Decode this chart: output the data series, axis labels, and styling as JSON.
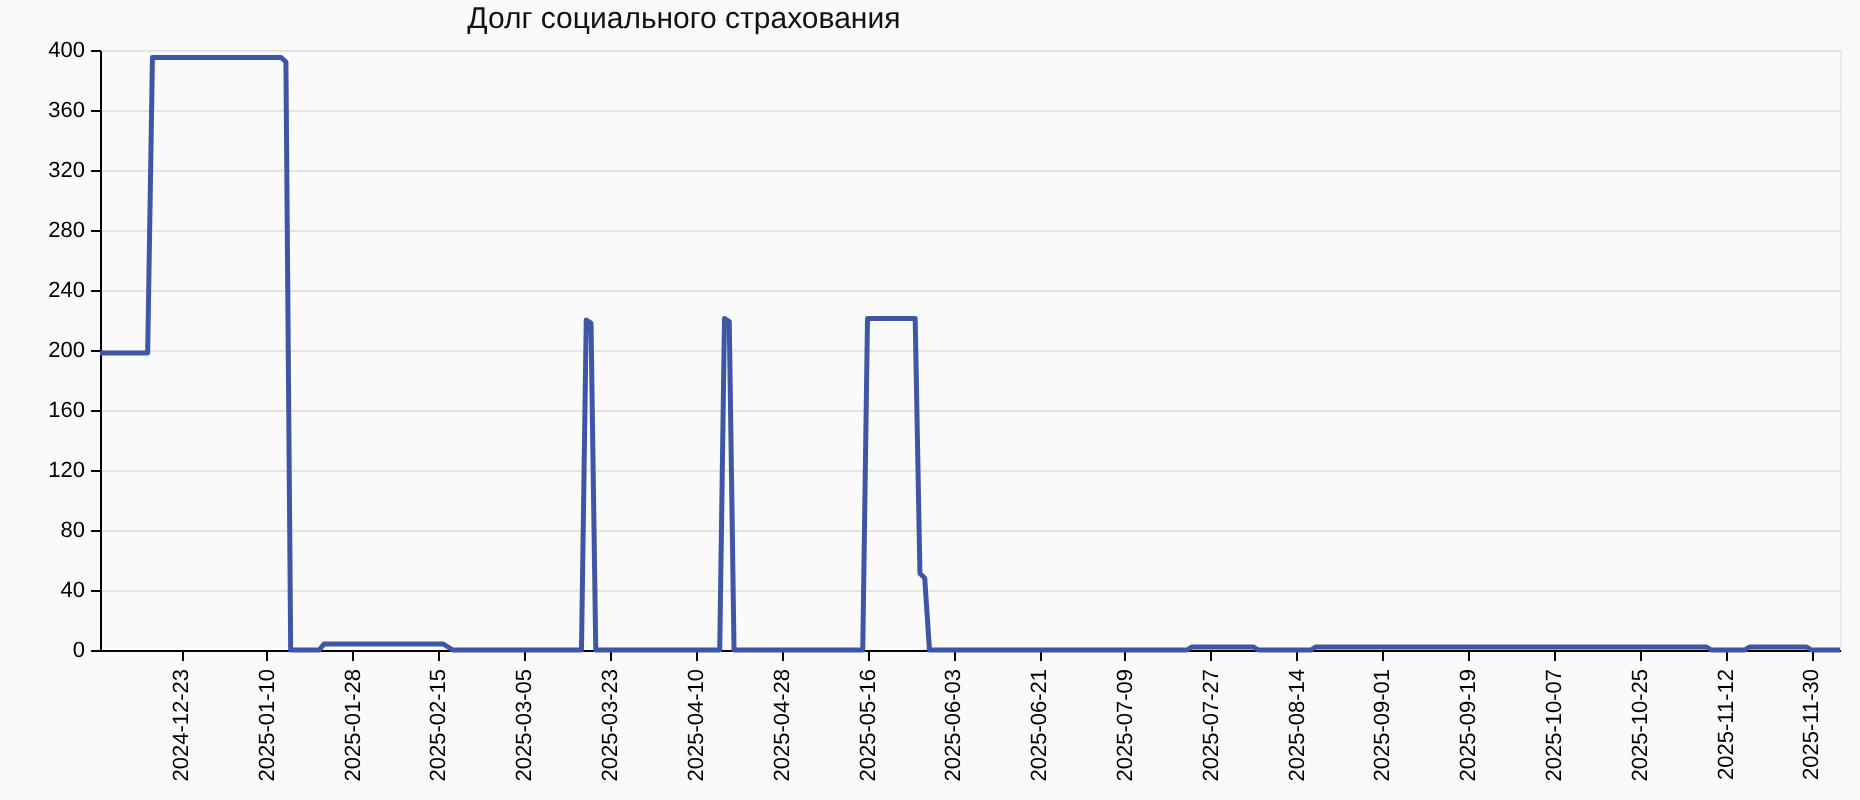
{
  "chart_data": {
    "type": "line",
    "title": "Долг социального страхования",
    "x": [
      "2024-12-06",
      "2024-12-16",
      "2024-12-17",
      "2025-01-13",
      "2025-01-14",
      "2025-01-15",
      "2025-01-21",
      "2025-01-22",
      "2025-02-16",
      "2025-02-18",
      "2025-03-17",
      "2025-03-18",
      "2025-03-19",
      "2025-03-20",
      "2025-04-15",
      "2025-04-16",
      "2025-04-17",
      "2025-04-18",
      "2025-05-15",
      "2025-05-16",
      "2025-05-26",
      "2025-05-27",
      "2025-05-28",
      "2025-05-29",
      "2025-07-22",
      "2025-07-23",
      "2025-08-05",
      "2025-08-06",
      "2025-08-17",
      "2025-08-18",
      "2025-11-08",
      "2025-11-09",
      "2025-11-16",
      "2025-11-17",
      "2025-11-29",
      "2025-11-30",
      "2025-12-06"
    ],
    "series": [
      {
        "color": "#3f55a5",
        "values": [
          198,
          198,
          395,
          395,
          392,
          0,
          0,
          4,
          4,
          0,
          0,
          220,
          218,
          0,
          0,
          221,
          219,
          0,
          0,
          221,
          221,
          51,
          48,
          0,
          0,
          2,
          2,
          0,
          0,
          2,
          2,
          0,
          0,
          2,
          2,
          0,
          0
        ]
      }
    ],
    "xlim": [
      "2024-12-06",
      "2025-12-06"
    ],
    "xticks": [
      "2024-12-23",
      "2025-01-10",
      "2025-01-28",
      "2025-02-15",
      "2025-03-05",
      "2025-03-23",
      "2025-04-10",
      "2025-04-28",
      "2025-05-16",
      "2025-06-03",
      "2025-06-21",
      "2025-07-09",
      "2025-07-27",
      "2025-08-14",
      "2025-09-01",
      "2025-09-19",
      "2025-10-07",
      "2025-10-25",
      "2025-11-12",
      "2025-11-30"
    ],
    "ylim": [
      0,
      400
    ],
    "yticks": [
      0,
      40,
      80,
      120,
      160,
      200,
      240,
      280,
      320,
      360,
      400
    ],
    "grid": "y"
  }
}
